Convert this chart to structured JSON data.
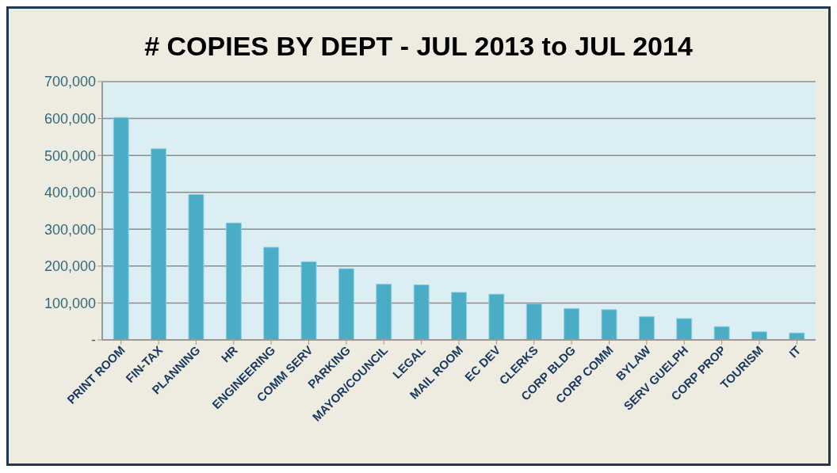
{
  "chart_data": {
    "type": "bar",
    "title": "# COPIES BY DEPT - JUL 2013 to JUL 2014",
    "categories": [
      "PRINT ROOM",
      "FIN-TAX",
      "PLANNING",
      "HR",
      "ENGINEERING",
      "COMM SERV",
      "PARKING",
      "MAYOR/COUNCIL",
      "LEGAL",
      "MAIL ROOM",
      "EC DEV",
      "CLERKS",
      "CORP BLDG",
      "CORP COMM",
      "BYLAW",
      "SERV GUELPH",
      "CORP PROP",
      "TOURISM",
      "IT"
    ],
    "values": [
      603000,
      518000,
      394000,
      317000,
      251000,
      212000,
      193000,
      151000,
      149000,
      129000,
      124000,
      98000,
      85000,
      82000,
      63000,
      58000,
      36000,
      22000,
      19000
    ],
    "color": "#4bacc6",
    "ylim": [
      0,
      700000
    ],
    "yticks": [
      {
        "value": 0,
        "label": "-"
      },
      {
        "value": 100000,
        "label": "100,000"
      },
      {
        "value": 200000,
        "label": "200,000"
      },
      {
        "value": 300000,
        "label": "300,000"
      },
      {
        "value": 400000,
        "label": "400,000"
      },
      {
        "value": 500000,
        "label": "500,000"
      },
      {
        "value": 600000,
        "label": "600,000"
      },
      {
        "value": 700000,
        "label": "700,000"
      }
    ],
    "grid": "y"
  }
}
